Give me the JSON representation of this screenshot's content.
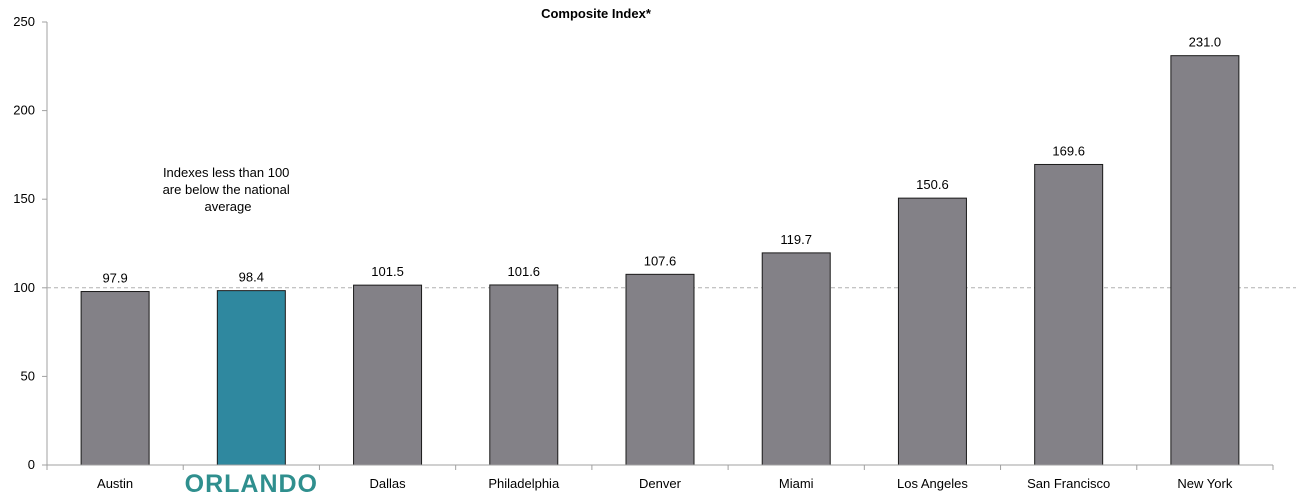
{
  "chart_data": {
    "type": "bar",
    "title": "Composite Index*",
    "xlabel": "",
    "ylabel": "",
    "ylim": [
      0,
      250
    ],
    "yticks": [
      0,
      50,
      100,
      150,
      200,
      250
    ],
    "categories": [
      "Austin",
      "ORLANDO",
      "Dallas",
      "Philadelphia",
      "Denver",
      "Miami",
      "Los Angeles",
      "San Francisco",
      "New York"
    ],
    "values": [
      97.9,
      98.4,
      101.5,
      101.6,
      107.6,
      119.7,
      150.6,
      169.6,
      231.0
    ],
    "value_labels": [
      "97.9",
      "98.4",
      "101.5",
      "101.6",
      "107.6",
      "119.7",
      "150.6",
      "169.6",
      "231.0"
    ],
    "highlight_category": "ORLANDO",
    "reference_line": 100,
    "annotation": [
      "Indexes less than 100",
      "are below the national",
      "average"
    ],
    "grid": false,
    "legend": "none",
    "colors": {
      "bar": "#838187",
      "highlight": "#2f889f",
      "logo": "#2f8f8e",
      "reference_line": "#b0b0b0",
      "axis": "#a0a0a0"
    }
  }
}
